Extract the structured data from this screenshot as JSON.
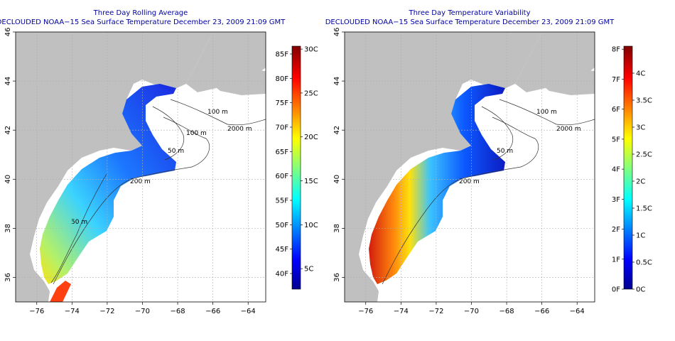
{
  "panels": [
    {
      "title": "Three Day Rolling Average",
      "subtitle": "DECLOUDED NOAA−15 Sea Surface Temperature December 23, 2009 21:09 GMT",
      "colorbar_left": [
        "85F",
        "80F",
        "75F",
        "70F",
        "65F",
        "60F",
        "55F",
        "50F",
        "45F",
        "40F"
      ],
      "colorbar_right": [
        "30C",
        "25C",
        "20C",
        "15C",
        "10C",
        "5C"
      ]
    },
    {
      "title": "Three Day Temperature Variability",
      "subtitle": "DECLOUDED NOAA−15 Sea Surface Temperature December 23, 2009 21:09 GMT",
      "colorbar_left": [
        "8F",
        "7F",
        "6F",
        "5F",
        "4F",
        "3F",
        "2F",
        "1F",
        "0F"
      ],
      "colorbar_right": [
        "4C",
        "3.5C",
        "3C",
        "2.5C",
        "2C",
        "1.5C",
        "1C",
        "0.5C",
        "0C"
      ]
    }
  ],
  "axes": {
    "x_ticks": [
      "−76",
      "−74",
      "−72",
      "−70",
      "−68",
      "−66",
      "−64"
    ],
    "y_ticks": [
      "46",
      "44",
      "42",
      "40",
      "38",
      "36"
    ]
  },
  "contour_labels": [
    "100 m",
    "100 m",
    "2000 m",
    "200 m",
    "50 m",
    "50 m"
  ],
  "colors": {
    "land": "#c0c0c0",
    "title_text": "#0000a0",
    "grid": "#b0b0b0"
  }
}
